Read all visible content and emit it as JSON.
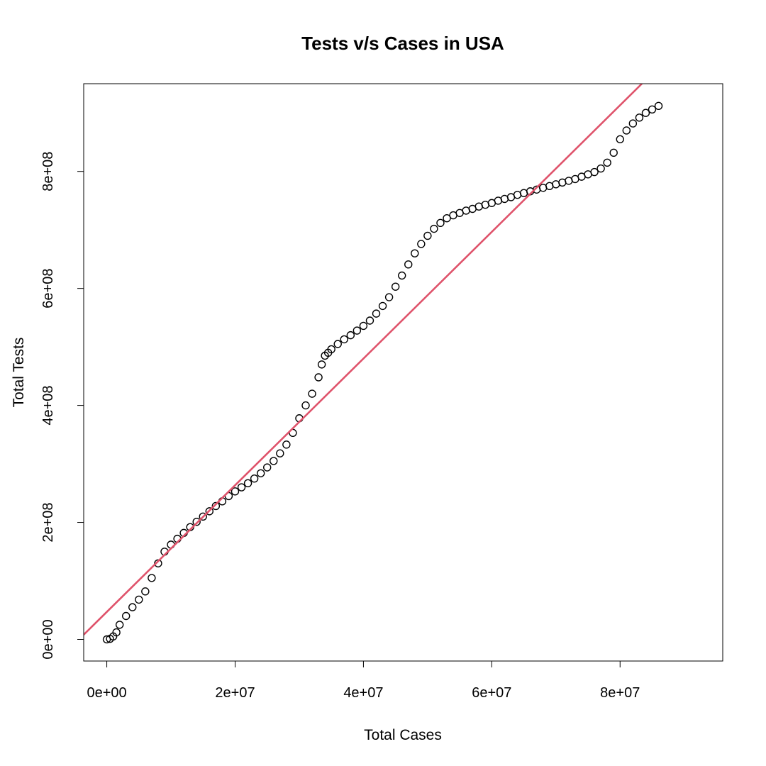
{
  "chart_data": {
    "type": "scatter",
    "title": "Tests v/s Cases in USA",
    "xlabel": "Total Cases",
    "ylabel": "Total Tests",
    "xlim": [
      -3600000,
      96000000
    ],
    "ylim": [
      -37000000,
      950000000
    ],
    "x_ticks": [
      {
        "value": 0,
        "label": "0e+00"
      },
      {
        "value": 20000000,
        "label": "2e+07"
      },
      {
        "value": 40000000,
        "label": "4e+07"
      },
      {
        "value": 60000000,
        "label": "6e+07"
      },
      {
        "value": 80000000,
        "label": "8e+07"
      }
    ],
    "y_ticks": [
      {
        "value": 0,
        "label": "0e+00"
      },
      {
        "value": 200000000,
        "label": "2e+08"
      },
      {
        "value": 400000000,
        "label": "4e+08"
      },
      {
        "value": 600000000,
        "label": "6e+08"
      },
      {
        "value": 800000000,
        "label": "8e+08"
      }
    ],
    "grid": false,
    "marker": "open-circle",
    "series": [
      {
        "type": "scatter",
        "color": "#000000",
        "points": [
          [
            0,
            0
          ],
          [
            500000,
            1000000
          ],
          [
            1000000,
            5000000
          ],
          [
            1500000,
            12000000
          ],
          [
            2000000,
            25000000
          ],
          [
            3000000,
            40000000
          ],
          [
            4000000,
            55000000
          ],
          [
            5000000,
            68000000
          ],
          [
            6000000,
            82000000
          ],
          [
            7000000,
            105000000
          ],
          [
            8000000,
            130000000
          ],
          [
            9000000,
            150000000
          ],
          [
            10000000,
            162000000
          ],
          [
            11000000,
            172000000
          ],
          [
            12000000,
            182000000
          ],
          [
            13000000,
            192000000
          ],
          [
            14000000,
            201000000
          ],
          [
            15000000,
            210000000
          ],
          [
            16000000,
            219000000
          ],
          [
            17000000,
            228000000
          ],
          [
            18000000,
            236000000
          ],
          [
            19000000,
            245000000
          ],
          [
            20000000,
            253000000
          ],
          [
            21000000,
            260000000
          ],
          [
            22000000,
            267000000
          ],
          [
            23000000,
            275000000
          ],
          [
            24000000,
            284000000
          ],
          [
            25000000,
            294000000
          ],
          [
            26000000,
            305000000
          ],
          [
            27000000,
            318000000
          ],
          [
            28000000,
            333000000
          ],
          [
            29000000,
            353000000
          ],
          [
            30000000,
            378000000
          ],
          [
            31000000,
            400000000
          ],
          [
            32000000,
            420000000
          ],
          [
            33000000,
            448000000
          ],
          [
            33500000,
            470000000
          ],
          [
            34000000,
            485000000
          ],
          [
            34500000,
            490000000
          ],
          [
            35000000,
            496000000
          ],
          [
            36000000,
            505000000
          ],
          [
            37000000,
            513000000
          ],
          [
            38000000,
            520000000
          ],
          [
            39000000,
            528000000
          ],
          [
            40000000,
            536000000
          ],
          [
            41000000,
            545000000
          ],
          [
            42000000,
            557000000
          ],
          [
            43000000,
            570000000
          ],
          [
            44000000,
            585000000
          ],
          [
            45000000,
            603000000
          ],
          [
            46000000,
            622000000
          ],
          [
            47000000,
            641000000
          ],
          [
            48000000,
            660000000
          ],
          [
            49000000,
            676000000
          ],
          [
            50000000,
            690000000
          ],
          [
            51000000,
            702000000
          ],
          [
            52000000,
            712000000
          ],
          [
            53000000,
            720000000
          ],
          [
            54000000,
            725000000
          ],
          [
            55000000,
            729000000
          ],
          [
            56000000,
            733000000
          ],
          [
            57000000,
            736000000
          ],
          [
            58000000,
            740000000
          ],
          [
            59000000,
            743000000
          ],
          [
            60000000,
            746000000
          ],
          [
            61000000,
            750000000
          ],
          [
            62000000,
            753000000
          ],
          [
            63000000,
            756000000
          ],
          [
            64000000,
            760000000
          ],
          [
            65000000,
            763000000
          ],
          [
            66000000,
            766000000
          ],
          [
            67000000,
            769000000
          ],
          [
            68000000,
            772000000
          ],
          [
            69000000,
            775000000
          ],
          [
            70000000,
            778000000
          ],
          [
            71000000,
            781000000
          ],
          [
            72000000,
            784000000
          ],
          [
            73000000,
            787000000
          ],
          [
            74000000,
            791000000
          ],
          [
            75000000,
            795000000
          ],
          [
            76000000,
            799000000
          ],
          [
            77000000,
            805000000
          ],
          [
            78000000,
            815000000
          ],
          [
            79000000,
            832000000
          ],
          [
            80000000,
            855000000
          ],
          [
            81000000,
            870000000
          ],
          [
            82000000,
            882000000
          ],
          [
            83000000,
            892000000
          ],
          [
            84000000,
            900000000
          ],
          [
            85000000,
            906000000
          ],
          [
            86000000,
            912000000
          ]
        ]
      },
      {
        "type": "line",
        "color": "#DF536B",
        "points": [
          [
            -3600000,
            8000000
          ],
          [
            83400000,
            950000000
          ]
        ]
      }
    ]
  }
}
